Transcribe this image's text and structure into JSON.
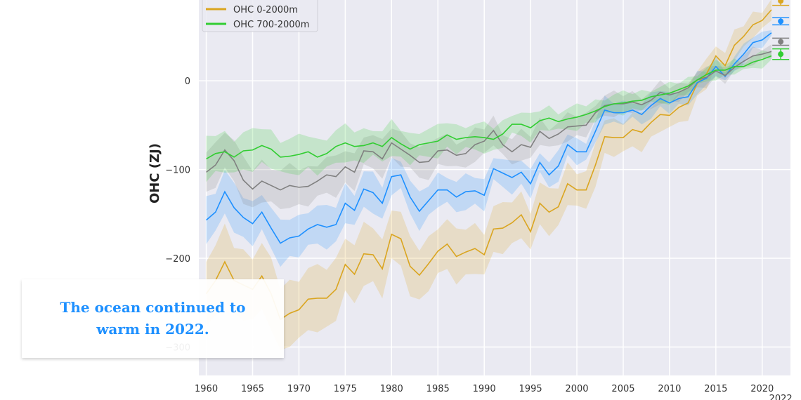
{
  "caption": {
    "text": "The ocean continued to warm in 2022."
  },
  "chart_data": {
    "type": "line",
    "ylabel": "OHC (ZJ)",
    "xlabel": "",
    "xlim": [
      1959.2,
      2023.05
    ],
    "ylim": [
      -332,
      91
    ],
    "x_ticks": [
      1960,
      1965,
      1970,
      1975,
      1980,
      1985,
      1990,
      1995,
      2000,
      2005,
      2010,
      2015,
      2020
    ],
    "x_tick_labels": [
      "1960",
      "1965",
      "1970",
      "1975",
      "1980",
      "1985",
      "1990",
      "1995",
      "2000",
      "2005",
      "2010",
      "2015",
      "2020"
    ],
    "extra_x_tick_label": "2022",
    "y_ticks": [
      0,
      -100,
      -200,
      -300
    ],
    "y_tick_labels": [
      "0",
      "−100",
      "−200",
      "−300"
    ],
    "grid": true,
    "background": "#eaeaf2",
    "legend_placement": "top-left",
    "legend_entries": [
      {
        "label": "OHC 0-2000m",
        "color": "#daa520"
      },
      {
        "label": "OHC 700-2000m",
        "color": "#32cd32"
      }
    ],
    "x_start": 1960,
    "series": [
      {
        "name": "OHC 0-2000m",
        "color": "#daa520",
        "ci_halfwidth": [
          40,
          12
        ],
        "marker_2022": {
          "value": 90,
          "error": 5
        },
        "values": [
          -240,
          -225,
          -204,
          -225,
          -230,
          -235,
          -220,
          -240,
          -269,
          -262,
          -258,
          -246,
          -245,
          -245,
          -235,
          -207,
          -218,
          -195,
          -196,
          -212,
          -173,
          -178,
          -209,
          -219,
          -206,
          -192,
          -184,
          -198,
          -193,
          -189,
          -196,
          -167,
          -166,
          -160,
          -151,
          -170,
          -138,
          -148,
          -142,
          -116,
          -123,
          -123,
          -95,
          -63,
          -64,
          -64,
          -55,
          -58,
          -47,
          -38,
          -39,
          -30,
          -25,
          -3,
          8,
          28,
          17,
          40,
          50,
          63,
          68,
          80
        ]
      },
      {
        "name": "",
        "color": "#1e90ff",
        "ci_halfwidth": [
          25,
          7
        ],
        "marker_2022": {
          "value": 67,
          "error": 4
        },
        "values": [
          -157,
          -148,
          -125,
          -143,
          -154,
          -161,
          -148,
          -166,
          -183,
          -177,
          -175,
          -167,
          -162,
          -165,
          -162,
          -138,
          -146,
          -122,
          -126,
          -138,
          -108,
          -106,
          -131,
          -147,
          -135,
          -123,
          -123,
          -131,
          -125,
          -124,
          -129,
          -99,
          -104,
          -109,
          -103,
          -116,
          -92,
          -106,
          -96,
          -72,
          -80,
          -80,
          -57,
          -33,
          -36,
          -36,
          -33,
          -38,
          -28,
          -20,
          -25,
          -20,
          -18,
          -2,
          3,
          16,
          5,
          19,
          30,
          43,
          46,
          54
        ]
      },
      {
        "name": "",
        "color": "#808080",
        "ci_halfwidth": [
          24,
          6
        ],
        "marker_2022": {
          "value": 44,
          "error": 4
        },
        "values": [
          -103,
          -95,
          -78,
          -90,
          -112,
          -122,
          -113,
          -118,
          -123,
          -118,
          -120,
          -119,
          -113,
          -106,
          -108,
          -97,
          -103,
          -79,
          -80,
          -88,
          -70,
          -77,
          -84,
          -92,
          -91,
          -79,
          -78,
          -84,
          -82,
          -72,
          -68,
          -56,
          -72,
          -80,
          -72,
          -75,
          -57,
          -65,
          -60,
          -52,
          -51,
          -50,
          -36,
          -28,
          -26,
          -26,
          -24,
          -27,
          -22,
          -13,
          -16,
          -13,
          -8,
          1,
          4,
          11,
          6,
          15,
          22,
          28,
          30,
          33
        ]
      },
      {
        "name": "OHC 700-2000m",
        "color": "#32cd32",
        "ci_halfwidth": [
          22,
          6
        ],
        "marker_2022": {
          "value": 30,
          "error": 6
        },
        "values": [
          -88,
          -82,
          -80,
          -86,
          -79,
          -78,
          -73,
          -77,
          -86,
          -85,
          -83,
          -80,
          -86,
          -82,
          -74,
          -70,
          -74,
          -73,
          -70,
          -74,
          -64,
          -71,
          -77,
          -72,
          -70,
          -68,
          -61,
          -66,
          -64,
          -63,
          -64,
          -66,
          -60,
          -49,
          -49,
          -53,
          -45,
          -42,
          -46,
          -43,
          -41,
          -38,
          -34,
          -29,
          -26,
          -25,
          -23,
          -22,
          -18,
          -16,
          -14,
          -10,
          -6,
          1,
          7,
          12,
          12,
          16,
          16,
          21,
          24,
          28
        ]
      }
    ]
  }
}
